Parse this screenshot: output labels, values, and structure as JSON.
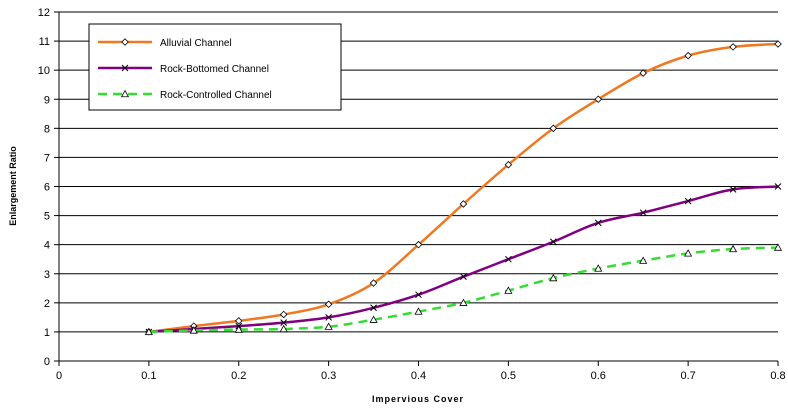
{
  "chart_data": {
    "type": "line",
    "title": "",
    "xlabel": "Impervious Cover",
    "ylabel": "Enlargement Ratio",
    "xlim": [
      0,
      0.8
    ],
    "ylim": [
      0,
      12
    ],
    "xticks": [
      0,
      0.1,
      0.2,
      0.3,
      0.4,
      0.5,
      0.6,
      0.7,
      0.8
    ],
    "xtick_labels": [
      "0",
      "0.1",
      "0.2",
      "0.3",
      "0.4",
      "0.5",
      "0.6",
      "0.7",
      "0.8"
    ],
    "yticks": [
      0,
      1,
      2,
      3,
      4,
      5,
      6,
      7,
      8,
      9,
      10,
      11,
      12
    ],
    "ytick_labels": [
      "0",
      "1",
      "2",
      "3",
      "4",
      "5",
      "6",
      "7",
      "8",
      "9",
      "10",
      "11",
      "12"
    ],
    "grid": "horizontal",
    "legend": "top-left",
    "x": [
      0.1,
      0.15,
      0.2,
      0.25,
      0.3,
      0.35,
      0.4,
      0.45,
      0.5,
      0.55,
      0.6,
      0.65,
      0.7,
      0.75,
      0.8
    ],
    "series": [
      {
        "name": "Alluvial Channel",
        "color": "#f07820",
        "dash": "solid",
        "marker": "diamond",
        "values": [
          1.0,
          1.2,
          1.38,
          1.6,
          1.95,
          2.68,
          4.0,
          5.4,
          6.75,
          8.0,
          9.0,
          9.9,
          10.5,
          10.8,
          10.9
        ]
      },
      {
        "name": "Rock-Bottomed Channel",
        "color": "#800080",
        "dash": "solid",
        "marker": "x",
        "values": [
          1.0,
          1.1,
          1.2,
          1.32,
          1.5,
          1.83,
          2.28,
          2.9,
          3.5,
          4.1,
          4.75,
          5.1,
          5.5,
          5.9,
          6.0
        ]
      },
      {
        "name": "Rock-Controlled Channel",
        "color": "#33dd33",
        "dash": "dashed",
        "marker": "triangle",
        "values": [
          1.0,
          1.05,
          1.08,
          1.1,
          1.18,
          1.42,
          1.7,
          2.0,
          2.42,
          2.85,
          3.18,
          3.45,
          3.7,
          3.85,
          3.9
        ]
      }
    ]
  }
}
